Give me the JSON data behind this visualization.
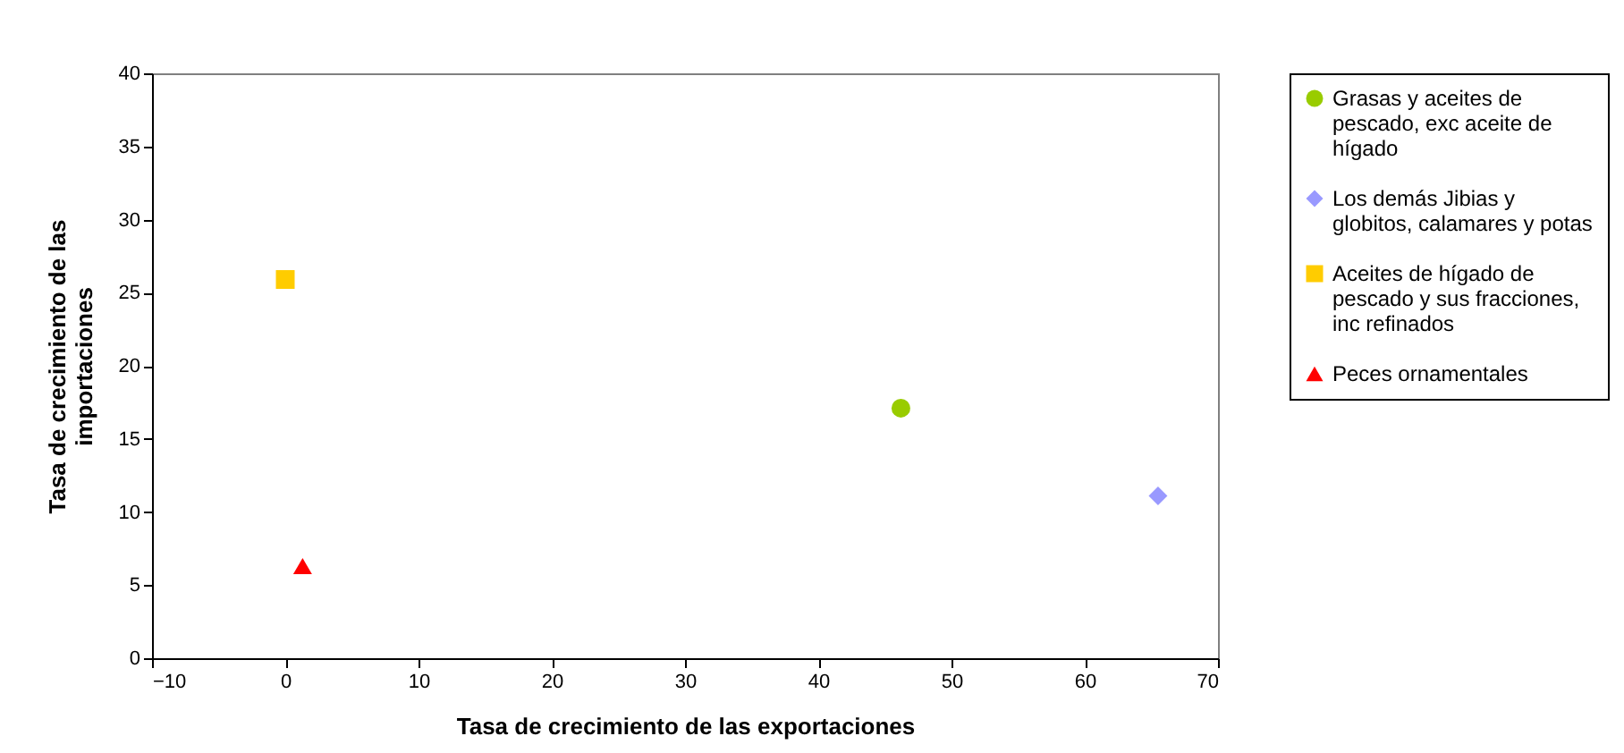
{
  "chart_data": {
    "type": "scatter",
    "xlabel": "Tasa de crecimiento de las exportaciones",
    "ylabel": "Tasa de crecimiento de las importaciones",
    "xlim": [
      -10,
      70
    ],
    "xticks": [
      -10,
      0,
      10,
      20,
      30,
      40,
      50,
      60,
      70
    ],
    "ylim": [
      0,
      40
    ],
    "yticks": [
      0,
      5,
      10,
      15,
      20,
      25,
      30,
      35,
      40
    ],
    "grid": false,
    "legend": "right",
    "series": [
      {
        "name": "Grasas y aceites de pescado, exc aceite de hígado",
        "color": "#99cc00",
        "marker": "circle",
        "x": [
          46.2
        ],
        "values": [
          17.1
        ]
      },
      {
        "name": "Los demás Jibias y globitos, calamares y potas",
        "color": "#9999ff",
        "marker": "diamond",
        "x": [
          65.5
        ],
        "values": [
          11.1
        ]
      },
      {
        "name": "Aceites de hígado de pescado y sus fracciones, inc refinados",
        "color": "#ffcc00",
        "marker": "square",
        "x": [
          0
        ],
        "values": [
          25.9
        ]
      },
      {
        "name": "Peces ornamentales",
        "color": "#ff0000",
        "marker": "triangle",
        "x": [
          1.3
        ],
        "values": [
          6.3
        ]
      }
    ]
  }
}
